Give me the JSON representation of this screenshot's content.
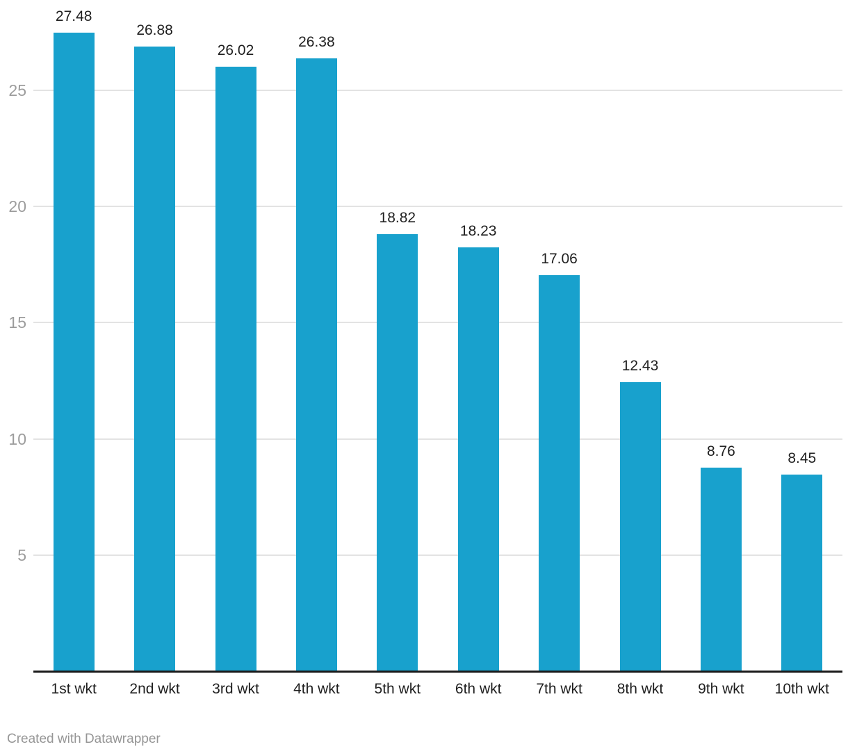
{
  "chart_data": {
    "type": "bar",
    "categories": [
      "1st wkt",
      "2nd wkt",
      "3rd wkt",
      "4th wkt",
      "5th wkt",
      "6th wkt",
      "7th wkt",
      "8th wkt",
      "9th wkt",
      "10th wkt"
    ],
    "values": [
      27.48,
      26.88,
      26.02,
      26.38,
      18.82,
      18.23,
      17.06,
      12.43,
      8.76,
      8.45
    ],
    "value_labels": [
      "27.48",
      "26.88",
      "26.02",
      "26.38",
      "18.82",
      "18.23",
      "17.06",
      "12.43",
      "8.76",
      "8.45"
    ],
    "title": "",
    "xlabel": "",
    "ylabel": "",
    "y_ticks": [
      5,
      10,
      15,
      20,
      25
    ],
    "ylim": [
      0,
      28.9
    ],
    "grid": "horizontal",
    "legend": "none",
    "bar_color": "#18a1cd"
  },
  "colors": {
    "bar": "#18a1cd",
    "value_label": "#1f1f1f",
    "category_label": "#1f1f1f",
    "tick_label": "#9c9c9c",
    "gridline": "#e3e3e3",
    "baseline": "#1a1a1a",
    "footer_text": "#969696",
    "background": "#ffffff"
  },
  "footer": {
    "attribution": "Created with Datawrapper"
  }
}
